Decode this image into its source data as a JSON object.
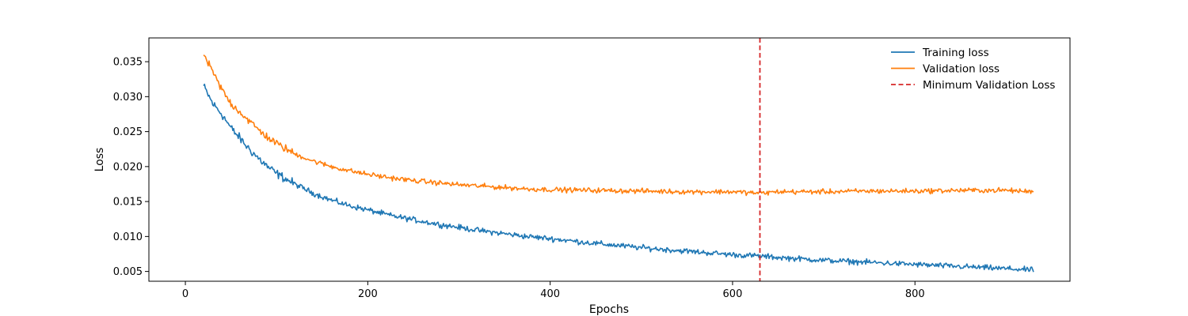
{
  "chart_data": {
    "type": "line",
    "title": "",
    "xlabel": "Epochs",
    "ylabel": "Loss",
    "xlim": [
      -40,
      970
    ],
    "ylim": [
      0.0036,
      0.0384
    ],
    "x_ticks": [
      0,
      200,
      400,
      600,
      800
    ],
    "y_ticks": [
      0.005,
      0.01,
      0.015,
      0.02,
      0.025,
      0.03,
      0.035
    ],
    "x_tick_labels": [
      "0",
      "200",
      "400",
      "600",
      "800"
    ],
    "y_tick_labels": [
      "0.005",
      "0.010",
      "0.015",
      "0.020",
      "0.025",
      "0.030",
      "0.035"
    ],
    "grid": false,
    "legend_position": "top-right",
    "x_start": 20,
    "x_end": 930,
    "series": [
      {
        "name": "Training loss",
        "color": "#1f77b4",
        "x": [
          20,
          30,
          40,
          50,
          60,
          70,
          80,
          90,
          100,
          120,
          140,
          160,
          180,
          200,
          225,
          250,
          275,
          300,
          325,
          350,
          375,
          400,
          450,
          500,
          550,
          600,
          630,
          650,
          700,
          750,
          800,
          850,
          900,
          930
        ],
        "y": [
          0.0315,
          0.029,
          0.0275,
          0.0255,
          0.024,
          0.0225,
          0.0212,
          0.02,
          0.019,
          0.0175,
          0.0162,
          0.0152,
          0.0144,
          0.0138,
          0.013,
          0.0124,
          0.0118,
          0.0113,
          0.0108,
          0.0104,
          0.01,
          0.0097,
          0.009,
          0.0084,
          0.0079,
          0.0074,
          0.0072,
          0.007,
          0.0066,
          0.0063,
          0.006,
          0.0057,
          0.0054,
          0.0052
        ]
      },
      {
        "name": "Validation loss",
        "color": "#ff7f0e",
        "x": [
          20,
          30,
          40,
          50,
          60,
          70,
          80,
          90,
          100,
          120,
          140,
          160,
          180,
          200,
          225,
          250,
          275,
          300,
          325,
          350,
          375,
          400,
          450,
          500,
          550,
          600,
          630,
          650,
          700,
          750,
          800,
          850,
          900,
          930
        ],
        "y": [
          0.036,
          0.0335,
          0.031,
          0.029,
          0.0278,
          0.0265,
          0.0253,
          0.0242,
          0.0233,
          0.0218,
          0.0208,
          0.02,
          0.0194,
          0.0189,
          0.0184,
          0.018,
          0.0177,
          0.0174,
          0.0172,
          0.017,
          0.0168,
          0.0167,
          0.0166,
          0.0165,
          0.0164,
          0.0164,
          0.0162,
          0.0164,
          0.0164,
          0.0165,
          0.0165,
          0.0166,
          0.0166,
          0.0164
        ]
      }
    ],
    "markers": [
      {
        "name": "Minimum Validation Loss",
        "type": "vline",
        "x": 630,
        "color": "#d62728",
        "style": "dashed"
      }
    ]
  }
}
